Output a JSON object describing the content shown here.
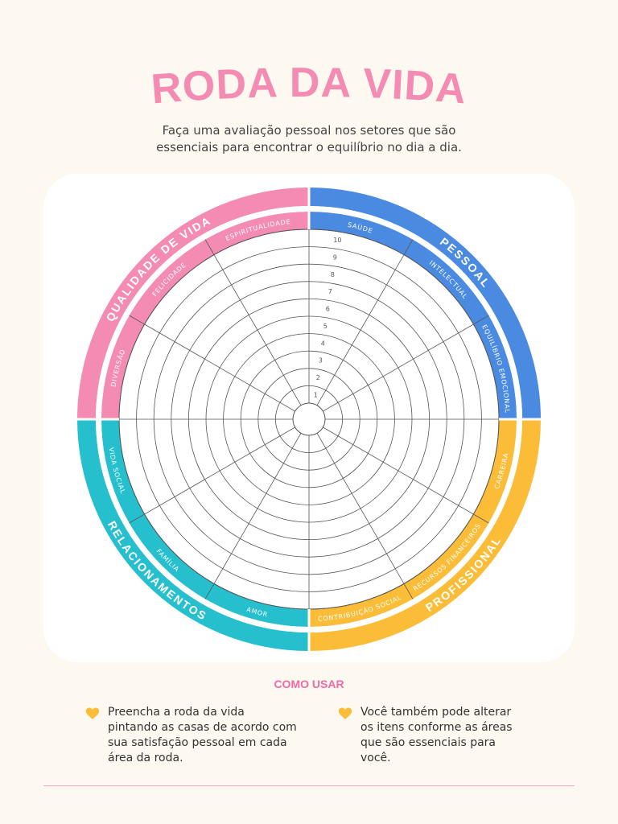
{
  "header": {
    "title": "RODA DA VIDA",
    "subtitle_line1": "Faça uma avaliação pessoal nos setores que são",
    "subtitle_line2": "essenciais para encontrar o equilíbrio no dia a dia."
  },
  "wheel": {
    "scale": [
      "1",
      "2",
      "3",
      "4",
      "5",
      "6",
      "7",
      "8",
      "9",
      "10"
    ],
    "groups": [
      {
        "name": "PESSOAL",
        "color": "#4a8ae0",
        "items": [
          "SAÚDE",
          "INTELECTUAL",
          "EQUILÍBRIO EMOCIONAL"
        ]
      },
      {
        "name": "PROFISSIONAL",
        "color": "#fbbd37",
        "items": [
          "CARREIRA",
          "RECURSOS FINANCEIROS",
          "CONTRIBUIÇÃO SOCIAL"
        ]
      },
      {
        "name": "RELACIONAMENTOS",
        "color": "#26bfce",
        "items": [
          "AMOR",
          "FAMÍLIA",
          "VIDA SOCIAL"
        ]
      },
      {
        "name": "QUALIDADE DE VIDA",
        "color": "#f48bb3",
        "items": [
          "DIVERSÃO",
          "FELICIDADE",
          "ESPIRITUALIDADE"
        ]
      }
    ]
  },
  "howto": {
    "title": "COMO USAR",
    "tips": [
      {
        "line1": "Preencha a roda da vida",
        "line2": "pintando as casas de acordo com",
        "line3": "sua satisfação pessoal em cada",
        "line4": "área da roda."
      },
      {
        "line1": "Você também pode alterar",
        "line2": "os itens conforme as áreas",
        "line3": "que são essenciais para",
        "line4": "você."
      }
    ],
    "heart_color": "#fbbd37",
    "heart_icon": "heart-icon"
  },
  "colors": {
    "title": "#f48bb3",
    "background": "#fdf8f0"
  }
}
